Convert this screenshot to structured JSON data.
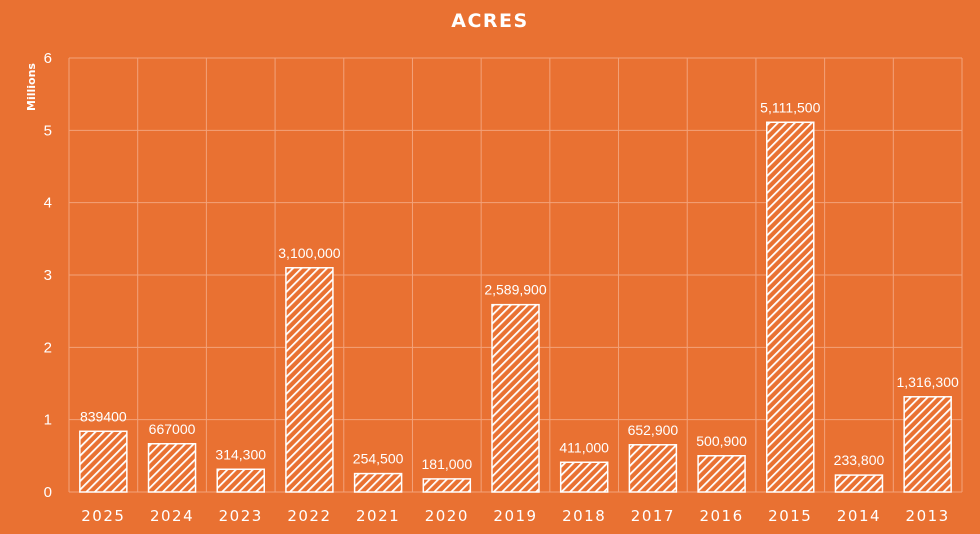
{
  "chart_data": {
    "type": "bar",
    "title": "ACRES",
    "ylabel": "Millions",
    "xlabel": "",
    "categories": [
      "2025",
      "2024",
      "2023",
      "2022",
      "2021",
      "2020",
      "2019",
      "2018",
      "2017",
      "2016",
      "2015",
      "2014",
      "2013"
    ],
    "values": [
      839400,
      667000,
      314300,
      3100000,
      254500,
      181000,
      2589900,
      411000,
      652900,
      500900,
      5111500,
      233800,
      1316300
    ],
    "data_labels": [
      "839400",
      "667000",
      "314,300",
      "3,100,000",
      "254,500",
      "181,000",
      "2,589,900",
      "411,000",
      "652,900",
      "500,900",
      "5,111,500",
      "233,800",
      "1,316,300"
    ],
    "yticks": [
      "0",
      "1",
      "2",
      "3",
      "4",
      "5",
      "6"
    ],
    "ylim": [
      0,
      6
    ],
    "y_unit_scale": 1000000,
    "grid": true,
    "bar_fill": "hatched-white",
    "colors": {
      "background": "#e97132",
      "bar": "#ffffff",
      "gridline": "#f3a27a",
      "text": "#ffffff"
    }
  }
}
